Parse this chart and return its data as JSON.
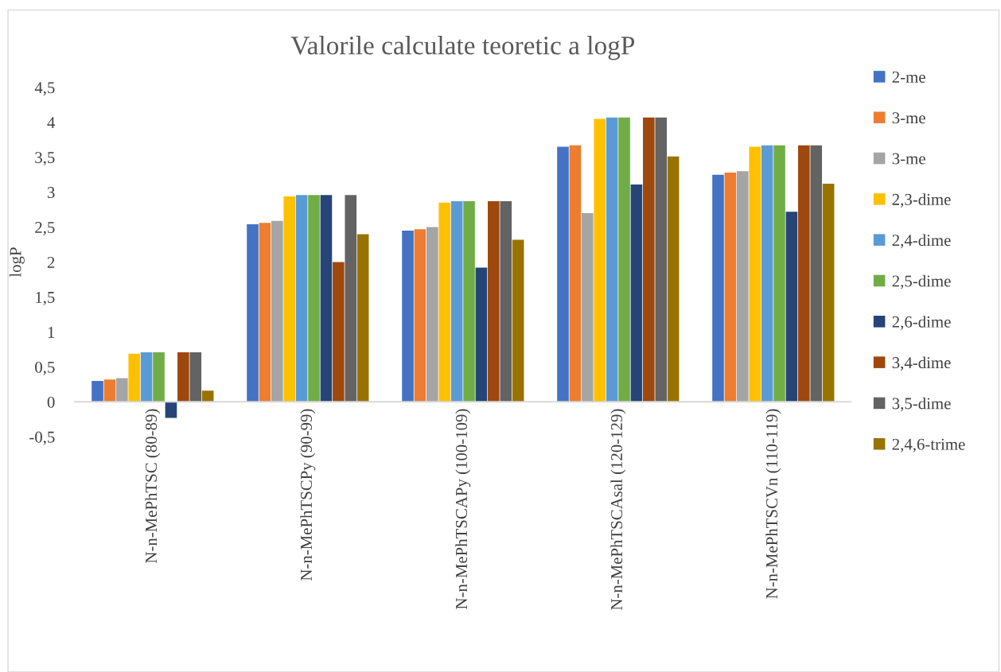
{
  "chart_data": {
    "type": "bar",
    "title": "Valorile calculate teoretic a logP",
    "ylabel": "logP",
    "categories": [
      "N-n-MePhTSC (80-89)",
      "N-n-MePhTSCPy (90-99)",
      "N-n-MePhTSCAPy (100-109)",
      "N-n-MePhTSCAsal (120-129)",
      "N-n-MePhTSCVn (110-119)"
    ],
    "series": [
      {
        "name": "2-me",
        "color": "#4472c4",
        "values": [
          0.3,
          2.54,
          2.45,
          3.65,
          3.25
        ]
      },
      {
        "name": "3-me",
        "color": "#ed7d31",
        "values": [
          0.32,
          2.56,
          2.47,
          3.67,
          3.28
        ]
      },
      {
        "name": "3-me",
        "color": "#a5a5a5",
        "values": [
          0.34,
          2.59,
          2.5,
          2.7,
          3.3
        ]
      },
      {
        "name": "2,3-dime",
        "color": "#ffc000",
        "values": [
          0.69,
          2.94,
          2.85,
          4.05,
          3.65
        ]
      },
      {
        "name": "2,4-dime",
        "color": "#5b9bd5",
        "values": [
          0.71,
          2.96,
          2.87,
          4.07,
          3.67
        ]
      },
      {
        "name": "2,5-dime",
        "color": "#70ad47",
        "values": [
          0.71,
          2.96,
          2.87,
          4.07,
          3.67
        ]
      },
      {
        "name": "2,6-dime",
        "color": "#264478",
        "values": [
          -0.23,
          2.96,
          1.92,
          3.11,
          2.72
        ]
      },
      {
        "name": "3,4-dime",
        "color": "#9e480e",
        "values": [
          0.71,
          2.0,
          2.87,
          4.07,
          3.67
        ]
      },
      {
        "name": "3,5-dime",
        "color": "#636363",
        "values": [
          0.71,
          2.96,
          2.87,
          4.07,
          3.67
        ]
      },
      {
        "name": "2,4,6-trime",
        "color": "#997300",
        "values": [
          0.16,
          2.4,
          2.32,
          3.51,
          3.12
        ]
      }
    ],
    "ylim": [
      -0.5,
      4.5
    ],
    "yticks": [
      {
        "value": -0.5,
        "label": "-0,5"
      },
      0,
      {
        "value": 0.5,
        "label": "0,5"
      },
      1,
      {
        "value": 1.5,
        "label": "1,5"
      },
      2,
      {
        "value": 2.5,
        "label": "2,5"
      },
      3,
      {
        "value": 3.5,
        "label": "3,5"
      },
      4,
      {
        "value": 4.5,
        "label": "4,5"
      }
    ],
    "grid": false,
    "legend": "right"
  }
}
